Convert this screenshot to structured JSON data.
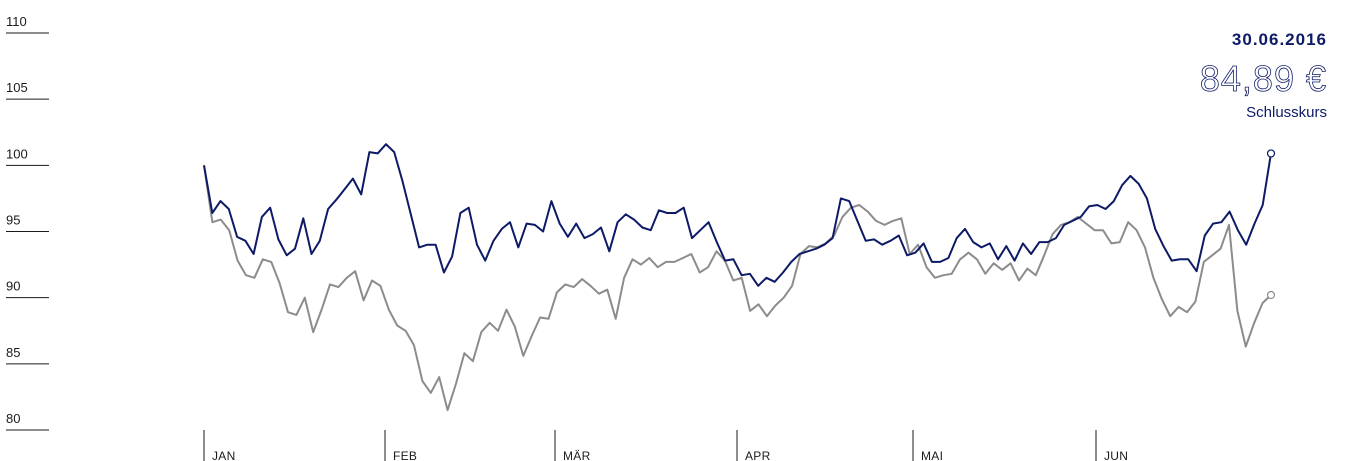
{
  "info": {
    "date": "30.06.2016",
    "price": "84,89 €",
    "label": "Schlusskurs"
  },
  "colors": {
    "primary": "#0d1a66",
    "secondary": "#8c8c8c"
  },
  "chart_data": {
    "type": "line",
    "ylim": [
      80,
      110
    ],
    "yticks": [
      110,
      105,
      100,
      95,
      90,
      85,
      80
    ],
    "months": [
      "JAN",
      "FEB",
      "MÄR",
      "APR",
      "MAI",
      "JUN"
    ],
    "grid": false,
    "series": [
      {
        "values": [
          100.0,
          96.4,
          97.3,
          96.7,
          94.6,
          94.3,
          93.3,
          96.1,
          96.8,
          94.4,
          93.2,
          93.7,
          96.0,
          93.3,
          94.3,
          96.7,
          97.4,
          98.2,
          99.0,
          97.8,
          101.0,
          100.9,
          101.6,
          101.0,
          98.8,
          96.3,
          93.8,
          94.0,
          94.0,
          91.9,
          93.1,
          96.4,
          96.8,
          94.0,
          92.8,
          94.3,
          95.2,
          95.7,
          93.8,
          95.6,
          95.5,
          95.0,
          97.3,
          95.6,
          94.6,
          95.6,
          94.5,
          94.8,
          95.3,
          93.5,
          95.7,
          96.3,
          95.9,
          95.3,
          95.1,
          96.6,
          96.4,
          96.4,
          96.8,
          94.5,
          95.1,
          95.7,
          94.2,
          92.8,
          92.9,
          91.7,
          91.8,
          90.9,
          91.5,
          91.2,
          91.9,
          92.7,
          93.3,
          93.5,
          93.7,
          94.0,
          94.5,
          97.5,
          97.3,
          95.8,
          94.3,
          94.4,
          94.0,
          94.3,
          94.7,
          93.2,
          93.4,
          94.1,
          92.7,
          92.7,
          93.0,
          94.5,
          95.2,
          94.2,
          93.8,
          94.1,
          92.9,
          93.9,
          92.8,
          94.1,
          93.3,
          94.2,
          94.2,
          94.5,
          95.5,
          95.8,
          96.1,
          96.9,
          97.0,
          96.7,
          97.3,
          98.5,
          99.2,
          98.6,
          97.5,
          95.2,
          93.9,
          92.8,
          92.9,
          92.9,
          92.0,
          94.7,
          95.6,
          95.7,
          96.5,
          95.1,
          94.0,
          95.6,
          97.0,
          100.9
        ]
      },
      {
        "values": [
          100.0,
          95.7,
          95.9,
          95.1,
          92.8,
          91.7,
          91.5,
          92.9,
          92.7,
          91.1,
          88.9,
          88.7,
          90.0,
          87.4,
          89.1,
          91.0,
          90.8,
          91.5,
          92.0,
          89.8,
          91.3,
          90.9,
          89.1,
          87.9,
          87.5,
          86.4,
          83.7,
          82.8,
          84.0,
          81.5,
          83.5,
          85.8,
          85.2,
          87.4,
          88.1,
          87.5,
          89.1,
          87.8,
          85.6,
          87.1,
          88.5,
          88.4,
          90.4,
          91.0,
          90.8,
          91.4,
          90.9,
          90.3,
          90.6,
          88.4,
          91.5,
          92.9,
          92.5,
          93.0,
          92.3,
          92.7,
          92.7,
          93.0,
          93.3,
          91.9,
          92.3,
          93.5,
          92.8,
          91.3,
          91.5,
          89.0,
          89.5,
          88.6,
          89.4,
          90.0,
          90.9,
          93.3,
          93.9,
          93.8,
          94.1,
          94.7,
          96.1,
          96.8,
          97.0,
          96.5,
          95.8,
          95.5,
          95.8,
          96.0,
          93.3,
          94.0,
          92.3,
          91.5,
          91.7,
          91.8,
          92.9,
          93.4,
          92.9,
          91.8,
          92.6,
          92.1,
          92.6,
          91.3,
          92.2,
          91.7,
          93.2,
          94.8,
          95.5,
          95.7,
          96.1,
          95.6,
          95.1,
          95.1,
          94.1,
          94.2,
          95.7,
          95.1,
          93.8,
          91.5,
          89.9,
          88.6,
          89.3,
          88.9,
          89.7,
          92.7,
          93.2,
          93.7,
          95.5,
          89.0,
          86.3,
          88.1,
          89.6,
          90.2
        ]
      }
    ]
  }
}
